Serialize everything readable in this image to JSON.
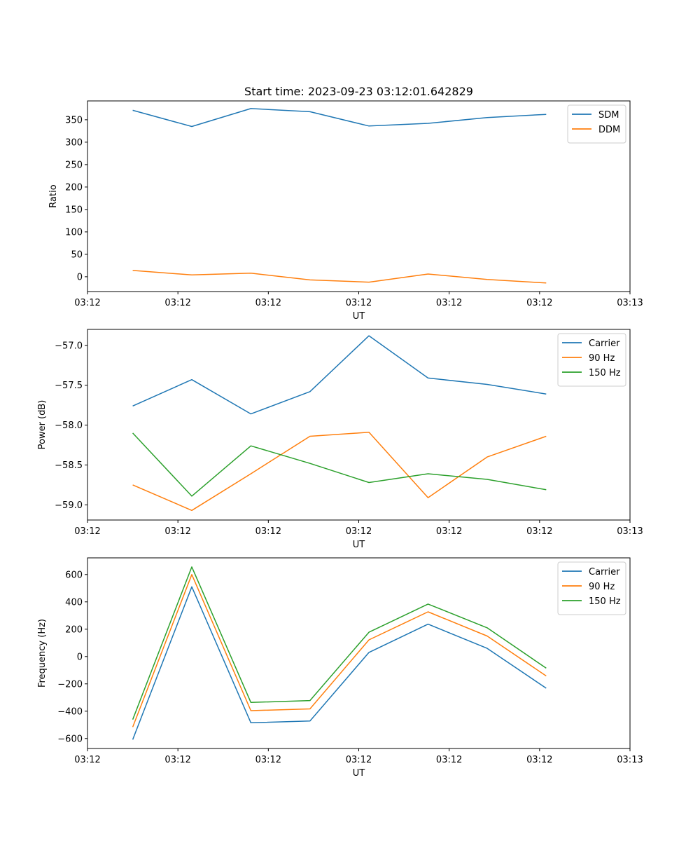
{
  "chart_data": [
    {
      "type": "line",
      "title": "Start time: 2023-09-23 03:12:01.642829",
      "xlabel": "UT",
      "ylabel": "Ratio",
      "xlim": [
        0,
        9
      ],
      "ylim": [
        -33,
        392
      ],
      "x_ticks": [
        0.0,
        1.5,
        3.0,
        4.5,
        6.0,
        7.5,
        9.0
      ],
      "x_tick_labels": [
        "03:12",
        "03:12",
        "03:12",
        "03:12",
        "03:12",
        "03:12",
        "03:13"
      ],
      "y_ticks": [
        0,
        50,
        100,
        150,
        200,
        250,
        300,
        350
      ],
      "y_tick_labels": [
        "0",
        "50",
        "100",
        "150",
        "200",
        "250",
        "300",
        "350"
      ],
      "legend_position": "upper-right",
      "x": [
        0.75,
        1.73,
        2.71,
        3.69,
        4.67,
        5.65,
        6.63,
        7.61
      ],
      "series": [
        {
          "name": "SDM",
          "color": "#1f77b4",
          "values": [
            371,
            335,
            375,
            368,
            336,
            342,
            355,
            362
          ]
        },
        {
          "name": "DDM",
          "color": "#ff7f0e",
          "values": [
            14,
            4,
            8,
            -7,
            -12,
            6,
            -6,
            -14
          ]
        }
      ]
    },
    {
      "type": "line",
      "title": "",
      "xlabel": "UT",
      "ylabel": "Power (dB)",
      "xlim": [
        0,
        9
      ],
      "ylim": [
        -59.19,
        -56.8
      ],
      "x_ticks": [
        0.0,
        1.5,
        3.0,
        4.5,
        6.0,
        7.5,
        9.0
      ],
      "x_tick_labels": [
        "03:12",
        "03:12",
        "03:12",
        "03:12",
        "03:12",
        "03:12",
        "03:13"
      ],
      "y_ticks": [
        -57.0,
        -57.5,
        -58.0,
        -58.5,
        -59.0
      ],
      "y_tick_labels": [
        "−57.0",
        "−57.5",
        "−58.0",
        "−58.5",
        "−59.0"
      ],
      "legend_position": "upper-right",
      "x": [
        0.75,
        1.73,
        2.71,
        3.69,
        4.67,
        5.65,
        6.63,
        7.61
      ],
      "series": [
        {
          "name": "Carrier",
          "color": "#1f77b4",
          "values": [
            -57.76,
            -57.43,
            -57.86,
            -57.58,
            -56.88,
            -57.41,
            -57.49,
            -57.61
          ]
        },
        {
          "name": "90 Hz",
          "color": "#ff7f0e",
          "values": [
            -58.75,
            -59.07,
            -58.61,
            -58.14,
            -58.09,
            -58.91,
            -58.4,
            -58.14
          ]
        },
        {
          "name": "150 Hz",
          "color": "#2ca02c",
          "values": [
            -58.1,
            -58.89,
            -58.26,
            -58.48,
            -58.72,
            -58.61,
            -58.68,
            -58.81
          ]
        }
      ]
    },
    {
      "type": "line",
      "title": "",
      "xlabel": "UT",
      "ylabel": "Frequency (Hz)",
      "xlim": [
        0,
        9
      ],
      "ylim": [
        -673,
        722
      ],
      "x_ticks": [
        0.0,
        1.5,
        3.0,
        4.5,
        6.0,
        7.5,
        9.0
      ],
      "x_tick_labels": [
        "03:12",
        "03:12",
        "03:12",
        "03:12",
        "03:12",
        "03:12",
        "03:13"
      ],
      "y_ticks": [
        -600,
        -400,
        -200,
        0,
        200,
        400,
        600
      ],
      "y_tick_labels": [
        "−600",
        "−400",
        "−200",
        "0",
        "200",
        "400",
        "600"
      ],
      "legend_position": "upper-right",
      "x": [
        0.75,
        1.73,
        2.71,
        3.69,
        4.67,
        5.65,
        6.63,
        7.61
      ],
      "series": [
        {
          "name": "Carrier",
          "color": "#1f77b4",
          "values": [
            -608,
            510,
            -485,
            -472,
            30,
            237,
            60,
            -232
          ]
        },
        {
          "name": "90 Hz",
          "color": "#ff7f0e",
          "values": [
            -516,
            600,
            -396,
            -383,
            122,
            327,
            150,
            -142
          ]
        },
        {
          "name": "150 Hz",
          "color": "#2ca02c",
          "values": [
            -461,
            656,
            -336,
            -322,
            178,
            384,
            210,
            -85
          ]
        }
      ]
    }
  ]
}
